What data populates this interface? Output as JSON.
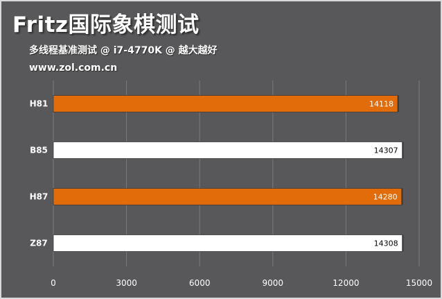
{
  "header": {
    "title": "Fritz国际象棋测试",
    "subtitle": "多线程基准测试 @ i7-4770K @ 越大越好",
    "source": "www.zol.com.cn"
  },
  "colors": {
    "background": "#58585a",
    "highlight_bar": "#e36c0a",
    "plain_bar": "#ffffff",
    "grid": "#7a7a7a"
  },
  "chart_data": {
    "type": "bar",
    "orientation": "horizontal",
    "title": "Fritz国际象棋测试",
    "subtitle": "多线程基准测试 @ i7-4770K @ 越大越好",
    "categories": [
      "H81",
      "B85",
      "H87",
      "Z87"
    ],
    "values": [
      14118,
      14307,
      14280,
      14308
    ],
    "highlighted": [
      true,
      false,
      true,
      false
    ],
    "xlim": [
      0,
      15000
    ],
    "xticks": [
      0,
      3000,
      6000,
      9000,
      12000,
      15000
    ],
    "grid": true,
    "legend": "none"
  }
}
